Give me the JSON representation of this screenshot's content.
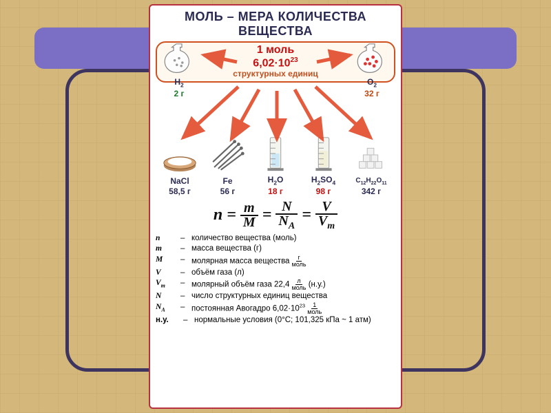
{
  "background": {
    "texture_color": "#d4b77a",
    "frame_color": "#7a6fc4",
    "frame_border": "#3d3560"
  },
  "poster": {
    "border_color": "#b83040",
    "title": "МОЛЬ – МЕРА КОЛИЧЕСТВА ВЕЩЕСТВА",
    "center": {
      "line1_prefix": "1 моль",
      "line1_value": "6,02·10",
      "line1_exp": "23",
      "line2": "структурных единиц",
      "text_color": "#c41010",
      "border_color": "#d05020"
    },
    "flasks": {
      "left": {
        "formula": "H",
        "sub": "2",
        "mass": "2 г",
        "mass_color": "#1a7a2a",
        "particle_color": "#888"
      },
      "right": {
        "formula": "O",
        "sub": "2",
        "mass": "32 г",
        "mass_color": "#c04810",
        "particle_color": "#d33"
      }
    },
    "arrows": {
      "color": "#e24a2a"
    },
    "items": [
      {
        "kind": "bowl",
        "formula": "NaCl",
        "sub": "",
        "mass": "58,5 г",
        "mass_color": "#2a2a52"
      },
      {
        "kind": "nails",
        "formula": "Fe",
        "sub": "",
        "mass": "56 г",
        "mass_color": "#2a2a52"
      },
      {
        "kind": "cylinder",
        "formula": "H",
        "sub": "2",
        "tail": "O",
        "mass": "18 г",
        "mass_color": "#c41010"
      },
      {
        "kind": "cylinder",
        "formula": "H",
        "sub": "2",
        "tail": "SO",
        "tail_sub": "4",
        "mass": "98 г",
        "mass_color": "#c41010"
      },
      {
        "kind": "cubes",
        "formula": "C",
        "sub": "12",
        "tail": "H",
        "tail_sub": "22",
        "tail2": "O",
        "tail2_sub": "11",
        "mass": "342 г",
        "mass_color": "#2a2a52"
      }
    ],
    "formula": {
      "lhs": "n",
      "eq": "=",
      "f1": {
        "num": "m",
        "den": "M"
      },
      "f2": {
        "num": "N",
        "den_base": "N",
        "den_sub": "A"
      },
      "f3": {
        "num": "V",
        "den_base": "V",
        "den_sub": "m"
      }
    },
    "legend": [
      {
        "sym": "n",
        "desc": "количество вещества (моль)"
      },
      {
        "sym": "m",
        "desc": "масса вещества (г)"
      },
      {
        "sym": "M",
        "desc": "молярная масса вещества",
        "unit_num": "г",
        "unit_den": "моль"
      },
      {
        "sym": "V",
        "desc": "объём газа (л)"
      },
      {
        "sym": "V",
        "sym_sub": "m",
        "desc": "молярный объём газа  22,4",
        "unit_num": "л",
        "unit_den": "моль",
        "suffix": "(н.у.)"
      },
      {
        "sym": "N",
        "desc": "число структурных единиц вещества"
      },
      {
        "sym": "N",
        "sym_sub": "A",
        "desc": "постоянная Авогадро  6,02·10",
        "exp": "23",
        "unit_num": "1",
        "unit_den": "моль"
      },
      {
        "sym": "н.у.",
        "plain": true,
        "desc": "нормальные условия (0°С; 101,325 кПа ~ 1 атм)"
      }
    ]
  }
}
